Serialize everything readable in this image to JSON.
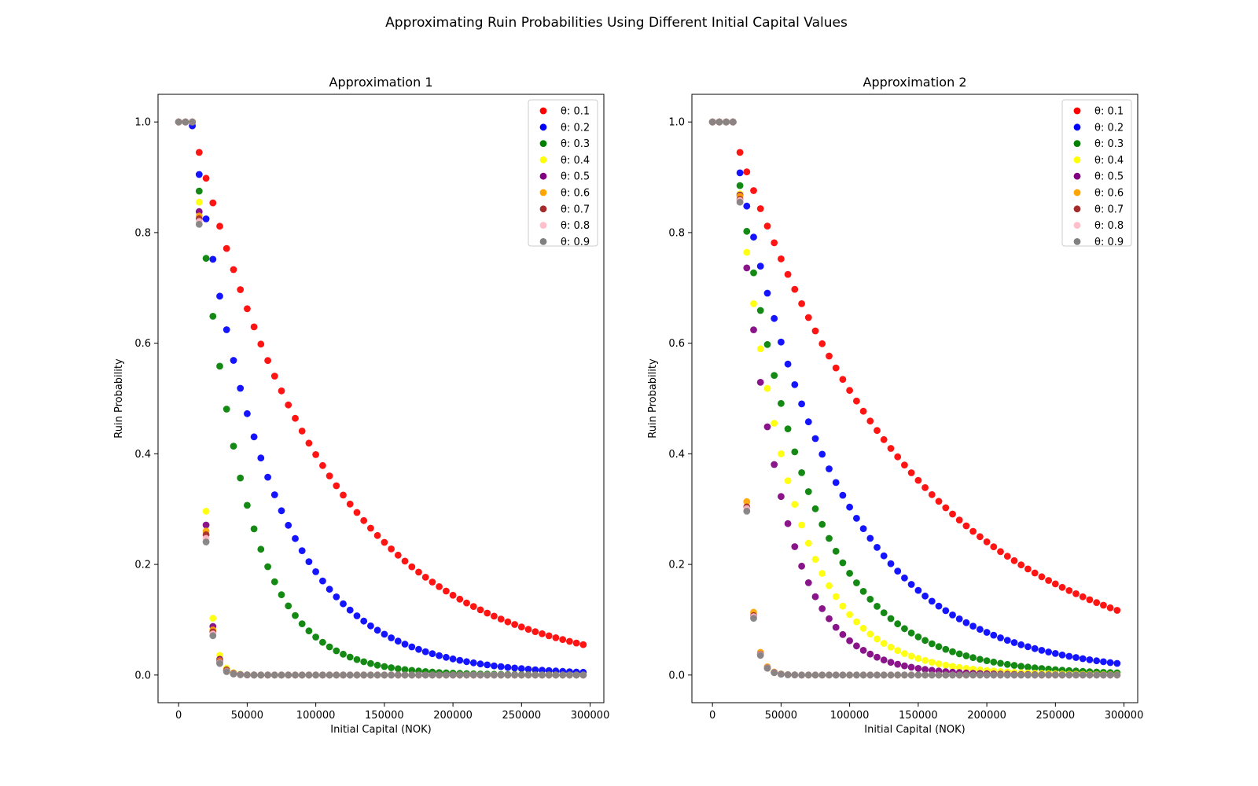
{
  "figure": {
    "title": "Approximating Ruin Probabilities Using Different Initial Capital Values"
  },
  "chart_data": [
    {
      "type": "scatter",
      "title": "Approximation 1",
      "xlabel": "Initial Capital (NOK)",
      "ylabel": "Ruin Probability",
      "xlim": [
        -15000,
        310000
      ],
      "ylim": [
        -0.05,
        1.05
      ],
      "xticks": [
        0,
        50000,
        100000,
        150000,
        200000,
        250000,
        300000
      ],
      "xtick_labels": [
        "0",
        "50000",
        "100000",
        "150000",
        "200000",
        "250000",
        "300000"
      ],
      "yticks": [
        0.0,
        0.2,
        0.4,
        0.6,
        0.8,
        1.0
      ],
      "ytick_labels": [
        "0.0",
        "0.2",
        "0.4",
        "0.6",
        "0.8",
        "1.0"
      ],
      "grid": false,
      "legend": "top-right",
      "x": {
        "start": 0,
        "step": 5000,
        "count": 60
      },
      "series": [
        {
          "name": "θ: 0.1",
          "color": "#ff0000",
          "flat_until": 10000,
          "y_at_15000": 0.945,
          "y_at_295000": 0.055
        },
        {
          "name": "θ: 0.2",
          "color": "#0000ff",
          "flat_until": 5000,
          "y_at_15000": 0.905,
          "y_at_295000": 0.005
        },
        {
          "name": "θ: 0.3",
          "color": "#008000",
          "flat_until": 5000,
          "y_at_15000": 0.875,
          "y_at_295000": 0.0002
        },
        {
          "name": "θ: 0.4",
          "color": "#ffff00",
          "flat_until": 10000,
          "y_at_15000": 0.855,
          "y_at_295000": 0.0
        },
        {
          "name": "θ: 0.5",
          "color": "#800080",
          "flat_until": 10000,
          "y_at_15000": 0.838,
          "y_at_295000": 0.0
        },
        {
          "name": "θ: 0.6",
          "color": "#ffa500",
          "flat_until": 10000,
          "y_at_15000": 0.83,
          "y_at_295000": 0.0
        },
        {
          "name": "θ: 0.7",
          "color": "#a52a2a",
          "flat_until": 10000,
          "y_at_15000": 0.825,
          "y_at_295000": 0.0
        },
        {
          "name": "θ: 0.8",
          "color": "#ffc0cb",
          "flat_until": 10000,
          "y_at_15000": 0.82,
          "y_at_295000": 0.0
        },
        {
          "name": "θ: 0.9",
          "color": "#808080",
          "flat_until": 10000,
          "y_at_15000": 0.815,
          "y_at_295000": 0.0
        }
      ]
    },
    {
      "type": "scatter",
      "title": "Approximation 2",
      "xlabel": "Initial Capital (NOK)",
      "ylabel": "Ruin Probability",
      "xlim": [
        -15000,
        310000
      ],
      "ylim": [
        -0.05,
        1.05
      ],
      "xticks": [
        0,
        50000,
        100000,
        150000,
        200000,
        250000,
        300000
      ],
      "xtick_labels": [
        "0",
        "50000",
        "100000",
        "150000",
        "200000",
        "250000",
        "300000"
      ],
      "yticks": [
        0.0,
        0.2,
        0.4,
        0.6,
        0.8,
        1.0
      ],
      "ytick_labels": [
        "0.0",
        "0.2",
        "0.4",
        "0.6",
        "0.8",
        "1.0"
      ],
      "grid": false,
      "legend": "top-right",
      "x": {
        "start": 0,
        "step": 5000,
        "count": 60
      },
      "series": [
        {
          "name": "θ: 0.1",
          "color": "#ff0000",
          "flat_until": 15000,
          "y_at_20000": 0.945,
          "y_at_295000": 0.117
        },
        {
          "name": "θ: 0.2",
          "color": "#0000ff",
          "flat_until": 15000,
          "y_at_20000": 0.908,
          "y_at_295000": 0.021
        },
        {
          "name": "θ: 0.3",
          "color": "#008000",
          "flat_until": 15000,
          "y_at_20000": 0.885,
          "y_at_295000": 0.004
        },
        {
          "name": "θ: 0.4",
          "color": "#ffff00",
          "flat_until": 15000,
          "y_at_20000": 0.87,
          "y_at_295000": 0.0007
        },
        {
          "name": "θ: 0.5",
          "color": "#800080",
          "flat_until": 15000,
          "y_at_20000": 0.868,
          "y_at_295000": 0.0001
        },
        {
          "name": "θ: 0.6",
          "color": "#ffa500",
          "flat_until": 15000,
          "y_at_20000": 0.866,
          "y_at_295000": 0.0
        },
        {
          "name": "θ: 0.7",
          "color": "#a52a2a",
          "flat_until": 15000,
          "y_at_20000": 0.86,
          "y_at_295000": 0.0
        },
        {
          "name": "θ: 0.8",
          "color": "#ffc0cb",
          "flat_until": 15000,
          "y_at_20000": 0.858,
          "y_at_295000": 0.0
        },
        {
          "name": "θ: 0.9",
          "color": "#808080",
          "flat_until": 15000,
          "y_at_20000": 0.855,
          "y_at_295000": 0.0
        }
      ]
    }
  ]
}
